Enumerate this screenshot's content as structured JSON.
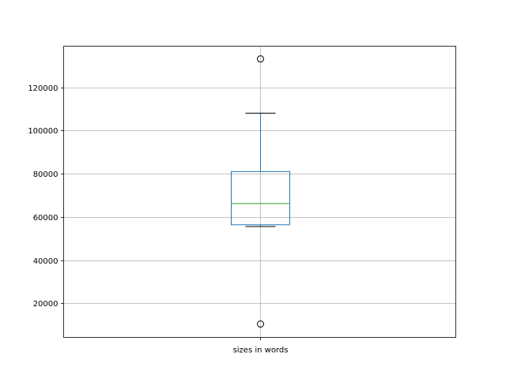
{
  "chart_data": {
    "type": "boxplot",
    "title": "",
    "xlabel": "",
    "ylabel": "",
    "categories": [
      "sizes in words"
    ],
    "boxes": [
      {
        "label": "sizes in words",
        "whisker_low": 55600,
        "q1": 56400,
        "median": 66200,
        "q3": 81000,
        "whisker_high": 108000,
        "outliers": [
          133100,
          10500
        ]
      }
    ],
    "ylim": [
      4300,
      139000
    ],
    "yticks": [
      20000,
      40000,
      60000,
      80000,
      100000,
      120000
    ],
    "ytick_labels": [
      "20000",
      "40000",
      "60000",
      "80000",
      "100000",
      "120000"
    ],
    "grid": true,
    "colors": {
      "box": "#1f77b4",
      "median": "#2ca02c",
      "whisker": "#1f77b4",
      "cap": "#000000",
      "grid": "#b0b0b0"
    }
  }
}
